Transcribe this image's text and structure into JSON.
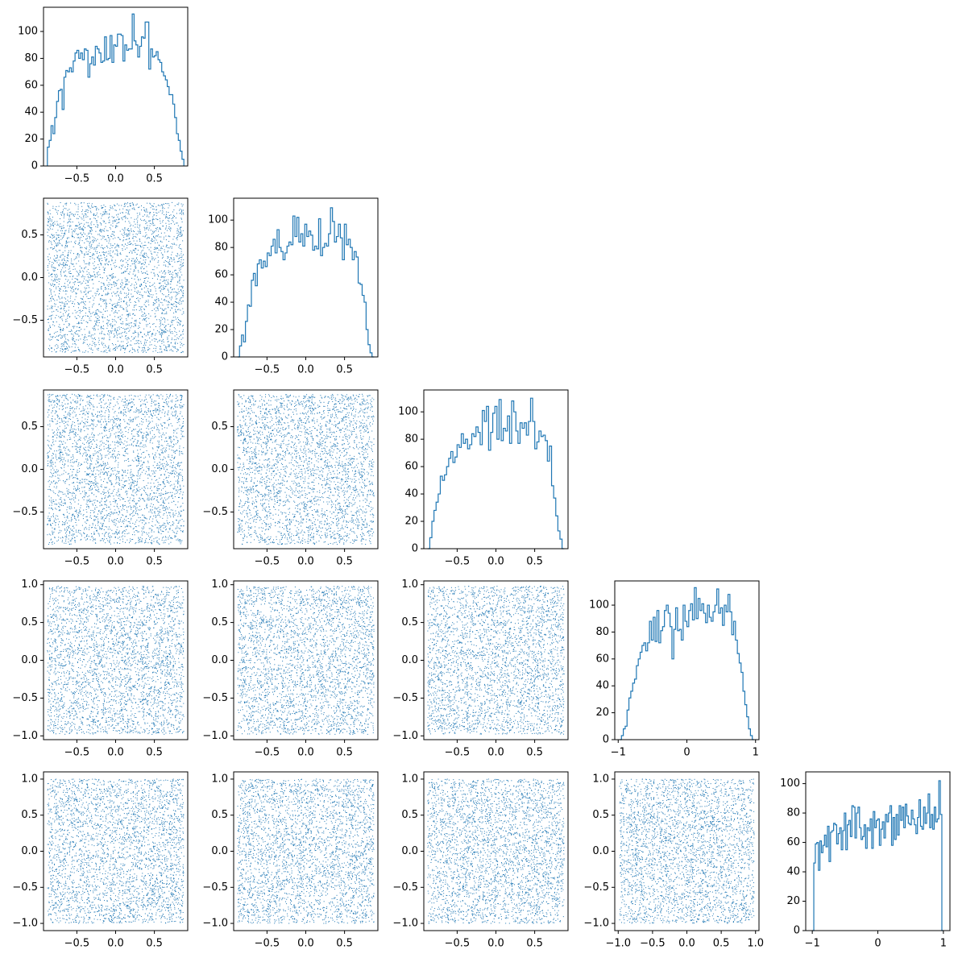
{
  "chart_data": {
    "type": "corner-plot",
    "n_dims": 5,
    "grid": false,
    "colors": {
      "series": "#1f77b4"
    },
    "dims": [
      {
        "range": [
          -0.93,
          0.93
        ],
        "ticks": [
          -0.5,
          0.0,
          0.5
        ],
        "tick_labels": [
          "−0.5",
          "0.0",
          "0.5"
        ]
      },
      {
        "range": [
          -0.93,
          0.93
        ],
        "ticks": [
          -0.5,
          0.0,
          0.5
        ],
        "tick_labels": [
          "−0.5",
          "0.0",
          "0.5"
        ]
      },
      {
        "range": [
          -0.93,
          0.93
        ],
        "ticks": [
          -0.5,
          0.0,
          0.5
        ],
        "tick_labels": [
          "−0.5",
          "0.0",
          "0.5"
        ]
      },
      {
        "range": [
          -1.05,
          1.05
        ],
        "ticks": [
          -1.0,
          -0.5,
          0.0,
          0.5,
          1.0
        ],
        "tick_labels": [
          "−1.0",
          "−0.5",
          "0.0",
          "0.5",
          "1.0"
        ],
        "diag_ticks": [
          -1,
          0,
          1
        ],
        "diag_tick_labels": [
          "−1",
          "0",
          "1"
        ]
      },
      {
        "range": [
          -1.1,
          1.1
        ],
        "ticks": [
          -1.0,
          -0.5,
          0.0,
          0.5,
          1.0
        ],
        "tick_labels": [
          "−1.0",
          "−0.5",
          "0.0",
          "0.5",
          "1.0"
        ],
        "diag_ticks": [
          -1,
          0,
          1
        ],
        "diag_tick_labels": [
          "−1",
          "0",
          "1"
        ]
      }
    ],
    "histograms": [
      {
        "dim": 0,
        "ylim": [
          0,
          118
        ],
        "yticks": [
          0,
          20,
          40,
          60,
          80,
          100
        ],
        "x_start": -0.88,
        "x_end": 0.88,
        "counts": [
          14,
          19,
          30,
          24,
          36,
          48,
          56,
          57,
          42,
          66,
          71,
          70,
          73,
          70,
          78,
          84,
          86,
          80,
          84,
          79,
          87,
          86,
          66,
          76,
          81,
          75,
          89,
          87,
          84,
          77,
          78,
          96,
          79,
          80,
          97,
          77,
          90,
          89,
          98,
          98,
          97,
          78,
          90,
          86,
          87,
          87,
          113,
          93,
          90,
          81,
          89,
          96,
          95,
          107,
          107,
          72,
          87,
          81,
          82,
          85,
          79,
          77,
          70,
          67,
          64,
          59,
          53,
          53,
          46,
          36,
          24,
          19,
          11,
          5
        ]
      },
      {
        "dim": 1,
        "ylim": [
          0,
          116
        ],
        "yticks": [
          0,
          20,
          40,
          60,
          80,
          100
        ],
        "x_start": -0.88,
        "x_end": 0.88,
        "counts": [
          0,
          8,
          16,
          11,
          26,
          38,
          37,
          56,
          61,
          52,
          68,
          71,
          65,
          70,
          66,
          76,
          74,
          81,
          86,
          76,
          93,
          80,
          77,
          71,
          76,
          81,
          84,
          82,
          103,
          88,
          102,
          84,
          90,
          81,
          97,
          88,
          92,
          89,
          78,
          81,
          79,
          101,
          74,
          80,
          83,
          81,
          90,
          109,
          99,
          84,
          88,
          97,
          87,
          71,
          97,
          82,
          86,
          80,
          71,
          77,
          73,
          54,
          53,
          45,
          40,
          20,
          9,
          3,
          0
        ]
      },
      {
        "dim": 2,
        "ylim": [
          0,
          116
        ],
        "yticks": [
          0,
          20,
          40,
          60,
          80,
          100
        ],
        "x_start": -0.88,
        "x_end": 0.88,
        "counts": [
          0,
          8,
          20,
          28,
          34,
          40,
          53,
          50,
          54,
          60,
          66,
          71,
          63,
          67,
          76,
          74,
          84,
          77,
          80,
          73,
          76,
          84,
          82,
          89,
          85,
          76,
          101,
          93,
          104,
          72,
          85,
          99,
          104,
          80,
          109,
          79,
          88,
          86,
          97,
          77,
          108,
          100,
          86,
          77,
          92,
          88,
          92,
          83,
          93,
          110,
          93,
          73,
          78,
          86,
          82,
          83,
          79,
          64,
          75,
          46,
          37,
          24,
          13,
          7,
          0
        ]
      },
      {
        "dim": 3,
        "ylim": [
          0,
          118
        ],
        "yticks": [
          0,
          20,
          40,
          60,
          80,
          100
        ],
        "x_start": -0.98,
        "x_end": 0.98,
        "counts": [
          0,
          3,
          8,
          10,
          22,
          31,
          36,
          42,
          45,
          55,
          60,
          65,
          70,
          72,
          66,
          72,
          88,
          74,
          91,
          73,
          96,
          72,
          81,
          84,
          96,
          100,
          94,
          84,
          60,
          82,
          98,
          81,
          82,
          74,
          100,
          88,
          84,
          96,
          101,
          89,
          113,
          90,
          105,
          96,
          101,
          94,
          87,
          100,
          91,
          88,
          95,
          100,
          112,
          94,
          98,
          85,
          100,
          95,
          108,
          95,
          78,
          88,
          74,
          64,
          57,
          50,
          36,
          26,
          17,
          8,
          3,
          0
        ]
      },
      {
        "dim": 4,
        "ylim": [
          0,
          108
        ],
        "yticks": [
          0,
          20,
          40,
          60,
          80,
          100
        ],
        "x_start": -1.0,
        "x_end": 1.0,
        "counts": [
          0,
          46,
          59,
          60,
          41,
          61,
          53,
          58,
          65,
          57,
          71,
          47,
          67,
          68,
          73,
          72,
          59,
          66,
          70,
          55,
          68,
          80,
          55,
          72,
          75,
          64,
          85,
          84,
          63,
          80,
          84,
          70,
          62,
          64,
          72,
          56,
          70,
          68,
          76,
          56,
          81,
          70,
          75,
          76,
          58,
          69,
          74,
          63,
          79,
          74,
          80,
          85,
          58,
          77,
          62,
          79,
          65,
          85,
          75,
          84,
          70,
          86,
          78,
          73,
          72,
          82,
          76,
          72,
          66,
          77,
          89,
          71,
          69,
          84,
          73,
          80,
          93,
          70,
          79,
          69,
          84,
          74,
          76,
          102,
          79,
          0
        ]
      }
    ],
    "scatter_panels": [
      {
        "row": 1,
        "col": 0,
        "n_points": 3200
      },
      {
        "row": 2,
        "col": 0,
        "n_points": 3200
      },
      {
        "row": 2,
        "col": 1,
        "n_points": 3200
      },
      {
        "row": 3,
        "col": 0,
        "n_points": 3200
      },
      {
        "row": 3,
        "col": 1,
        "n_points": 3200
      },
      {
        "row": 3,
        "col": 2,
        "n_points": 3200
      },
      {
        "row": 4,
        "col": 0,
        "n_points": 3200
      },
      {
        "row": 4,
        "col": 1,
        "n_points": 3200
      },
      {
        "row": 4,
        "col": 2,
        "n_points": 3200
      },
      {
        "row": 4,
        "col": 3,
        "n_points": 3200
      }
    ]
  }
}
